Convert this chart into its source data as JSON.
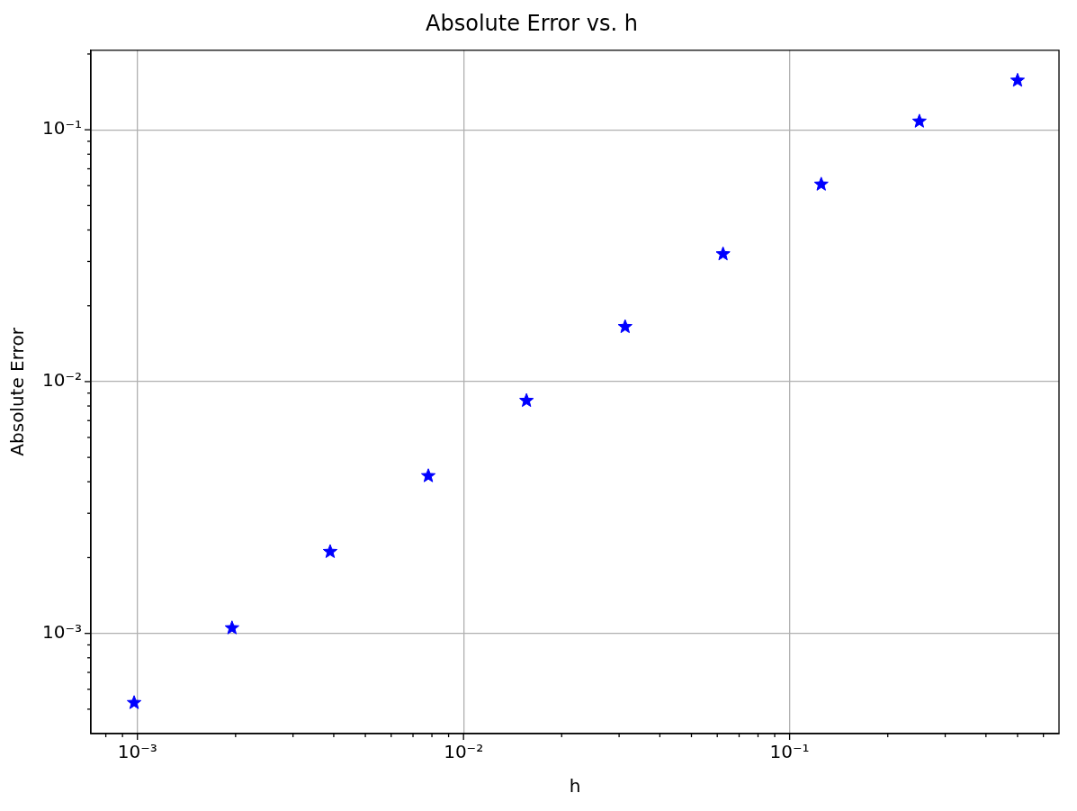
{
  "chart_data": {
    "type": "scatter",
    "title": "Absolute Error vs. h",
    "xlabel": "h",
    "ylabel": "Absolute Error",
    "x": [
      0.000977,
      0.00195,
      0.0039,
      0.0078,
      0.0156,
      0.0313,
      0.0625,
      0.125,
      0.25,
      0.5
    ],
    "series": [
      {
        "color": "#0000ff",
        "values": [
          0.00053,
          0.00105,
          0.00211,
          0.00422,
          0.0084,
          0.0165,
          0.0321,
          0.0607,
          0.108,
          0.157
        ]
      }
    ],
    "log": "xy",
    "grid": true,
    "legend": false,
    "marker": "star",
    "xlim": [
      0.00072,
      0.67
    ],
    "ylim": [
      0.0004,
      0.207
    ],
    "xticks": [
      {
        "value": 0.0008,
        "label": null
      },
      {
        "value": 0.0009,
        "label": null
      },
      {
        "value": 0.001,
        "label": "10⁻³"
      },
      {
        "value": 0.002,
        "label": null
      },
      {
        "value": 0.003,
        "label": null
      },
      {
        "value": 0.004,
        "label": null
      },
      {
        "value": 0.005,
        "label": null
      },
      {
        "value": 0.006,
        "label": null
      },
      {
        "value": 0.007,
        "label": null
      },
      {
        "value": 0.008,
        "label": null
      },
      {
        "value": 0.009,
        "label": null
      },
      {
        "value": 0.01,
        "label": "10⁻²"
      },
      {
        "value": 0.02,
        "label": null
      },
      {
        "value": 0.03,
        "label": null
      },
      {
        "value": 0.04,
        "label": null
      },
      {
        "value": 0.05,
        "label": null
      },
      {
        "value": 0.06,
        "label": null
      },
      {
        "value": 0.07,
        "label": null
      },
      {
        "value": 0.08,
        "label": null
      },
      {
        "value": 0.09,
        "label": null
      },
      {
        "value": 0.1,
        "label": "10⁻¹"
      },
      {
        "value": 0.2,
        "label": null
      },
      {
        "value": 0.3,
        "label": null
      },
      {
        "value": 0.4,
        "label": null
      },
      {
        "value": 0.5,
        "label": null
      },
      {
        "value": 0.6,
        "label": null
      }
    ],
    "yticks": [
      {
        "value": 0.0005,
        "label": null
      },
      {
        "value": 0.0006,
        "label": null
      },
      {
        "value": 0.0007,
        "label": null
      },
      {
        "value": 0.0008,
        "label": null
      },
      {
        "value": 0.0009,
        "label": null
      },
      {
        "value": 0.001,
        "label": "10⁻³"
      },
      {
        "value": 0.002,
        "label": null
      },
      {
        "value": 0.003,
        "label": null
      },
      {
        "value": 0.004,
        "label": null
      },
      {
        "value": 0.005,
        "label": null
      },
      {
        "value": 0.006,
        "label": null
      },
      {
        "value": 0.007,
        "label": null
      },
      {
        "value": 0.008,
        "label": null
      },
      {
        "value": 0.009,
        "label": null
      },
      {
        "value": 0.01,
        "label": "10⁻²"
      },
      {
        "value": 0.02,
        "label": null
      },
      {
        "value": 0.03,
        "label": null
      },
      {
        "value": 0.04,
        "label": null
      },
      {
        "value": 0.05,
        "label": null
      },
      {
        "value": 0.06,
        "label": null
      },
      {
        "value": 0.07,
        "label": null
      },
      {
        "value": 0.08,
        "label": null
      },
      {
        "value": 0.09,
        "label": null
      },
      {
        "value": 0.1,
        "label": "10⁻¹"
      },
      {
        "value": 0.2,
        "label": null
      }
    ]
  }
}
